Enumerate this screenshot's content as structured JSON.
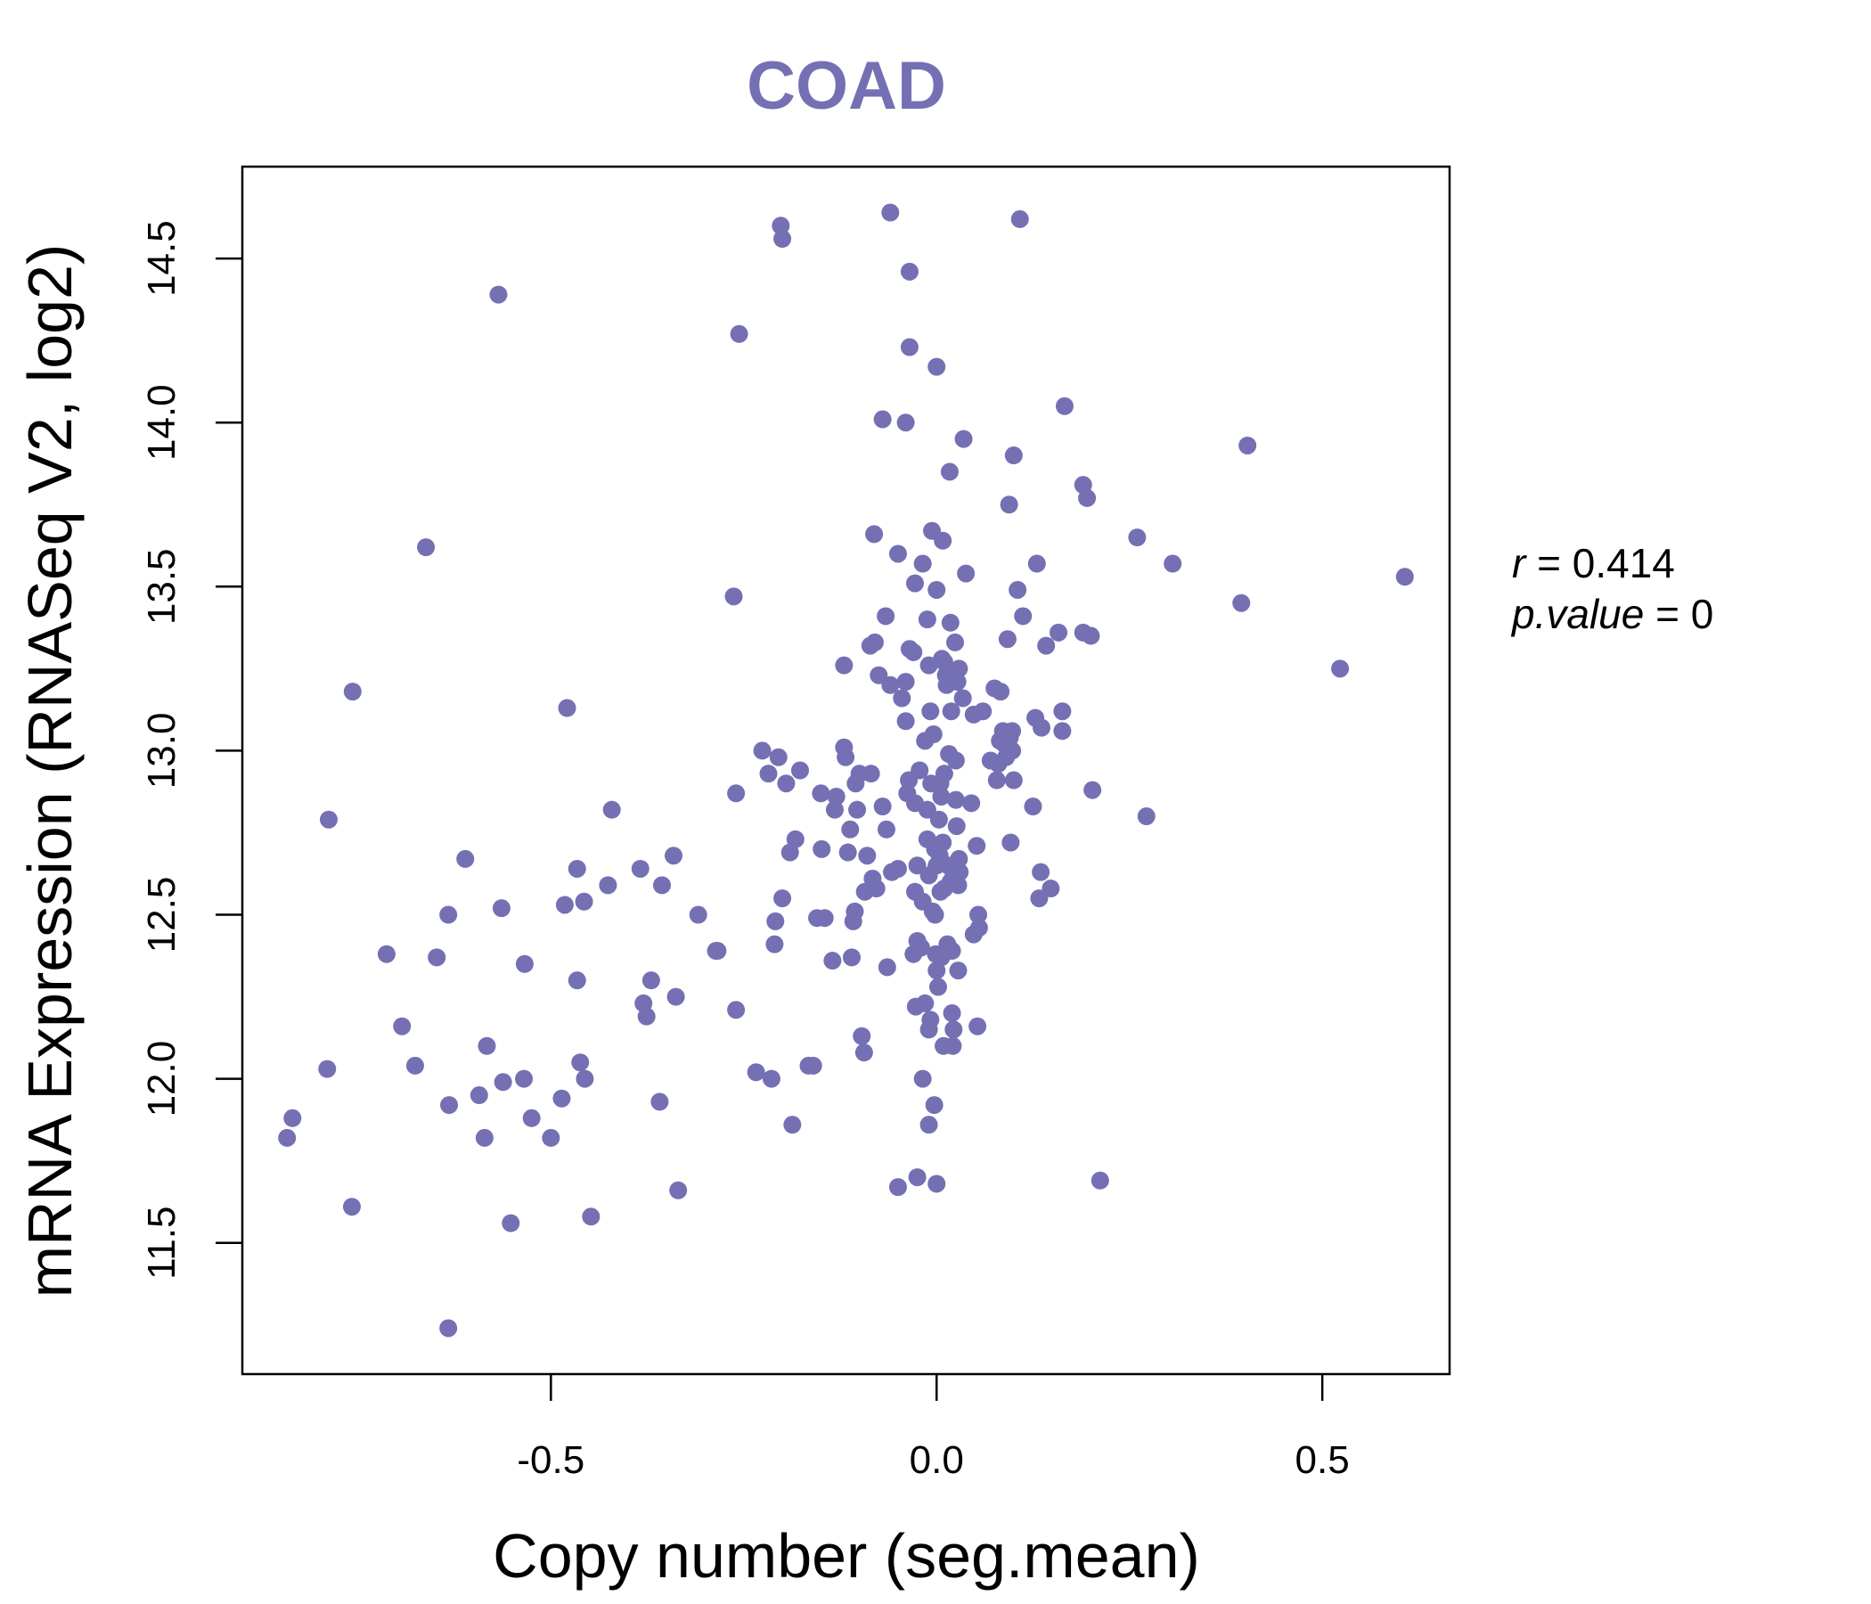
{
  "colors": {
    "point": "#7570b3",
    "title": "#7570b3",
    "axis": "#000000"
  },
  "chart_data": {
    "type": "scatter",
    "title": "COAD",
    "xlabel": "Copy number (seg.mean)",
    "ylabel": "mRNA Expression (RNASeq V2, log2)",
    "xlim": [
      -0.9,
      0.665
    ],
    "ylim": [
      11.1,
      14.78
    ],
    "x_ticks": [
      {
        "value": -0.5,
        "label": "-0.5"
      },
      {
        "value": 0.0,
        "label": "0.0"
      },
      {
        "value": 0.5,
        "label": "0.5"
      }
    ],
    "y_ticks": [
      {
        "value": 11.5,
        "label": "11.5"
      },
      {
        "value": 12.0,
        "label": "12.0"
      },
      {
        "value": 12.5,
        "label": "12.5"
      },
      {
        "value": 13.0,
        "label": "13.0"
      },
      {
        "value": 13.5,
        "label": "13.5"
      },
      {
        "value": 14.0,
        "label": "14.0"
      },
      {
        "value": 14.5,
        "label": "14.5"
      }
    ],
    "stats": {
      "r_label": "r",
      "r_value": "0.414",
      "p_label": "p.value",
      "p_value": "0"
    },
    "points": [
      [
        -0.842,
        11.82
      ],
      [
        -0.835,
        11.88
      ],
      [
        -0.79,
        12.03
      ],
      [
        -0.788,
        12.79
      ],
      [
        -0.758,
        11.61
      ],
      [
        -0.757,
        13.18
      ],
      [
        -0.713,
        12.38
      ],
      [
        -0.693,
        12.16
      ],
      [
        -0.676,
        12.04
      ],
      [
        -0.662,
        13.62
      ],
      [
        -0.648,
        12.37
      ],
      [
        -0.633,
        12.5
      ],
      [
        -0.632,
        11.92
      ],
      [
        -0.633,
        11.24
      ],
      [
        -0.611,
        12.67
      ],
      [
        -0.593,
        11.95
      ],
      [
        -0.586,
        11.82
      ],
      [
        -0.583,
        12.1
      ],
      [
        -0.568,
        14.39
      ],
      [
        -0.564,
        12.52
      ],
      [
        -0.562,
        11.99
      ],
      [
        -0.552,
        11.56
      ],
      [
        -0.535,
        12.0
      ],
      [
        -0.534,
        12.35
      ],
      [
        -0.525,
        11.88
      ],
      [
        -0.5,
        11.82
      ],
      [
        -0.486,
        11.94
      ],
      [
        -0.482,
        12.53
      ],
      [
        -0.479,
        13.13
      ],
      [
        -0.466,
        12.64
      ],
      [
        -0.466,
        12.3
      ],
      [
        -0.462,
        12.05
      ],
      [
        -0.457,
        12.54
      ],
      [
        -0.456,
        12.0
      ],
      [
        -0.448,
        11.58
      ],
      [
        -0.426,
        12.59
      ],
      [
        -0.421,
        12.82
      ],
      [
        -0.384,
        12.64
      ],
      [
        -0.38,
        12.23
      ],
      [
        -0.376,
        12.19
      ],
      [
        -0.37,
        12.3
      ],
      [
        -0.359,
        11.93
      ],
      [
        -0.356,
        12.59
      ],
      [
        -0.341,
        12.68
      ],
      [
        -0.338,
        12.25
      ],
      [
        -0.335,
        11.66
      ],
      [
        -0.309,
        12.5
      ],
      [
        -0.286,
        12.39
      ],
      [
        -0.284,
        12.39
      ],
      [
        -0.263,
        13.47
      ],
      [
        -0.26,
        12.21
      ],
      [
        -0.26,
        12.87
      ],
      [
        -0.256,
        14.27
      ],
      [
        -0.234,
        12.02
      ],
      [
        -0.226,
        13.0
      ],
      [
        -0.218,
        12.93
      ],
      [
        -0.214,
        12.0
      ],
      [
        -0.21,
        12.41
      ],
      [
        -0.209,
        12.48
      ],
      [
        -0.205,
        12.98
      ],
      [
        -0.202,
        14.6
      ],
      [
        -0.2,
        14.56
      ],
      [
        -0.2,
        12.55
      ],
      [
        -0.195,
        12.9
      ],
      [
        -0.19,
        12.69
      ],
      [
        -0.187,
        11.86
      ],
      [
        -0.183,
        12.73
      ],
      [
        -0.177,
        12.94
      ],
      [
        -0.166,
        12.04
      ],
      [
        -0.16,
        12.04
      ],
      [
        -0.155,
        12.49
      ],
      [
        -0.15,
        12.87
      ],
      [
        -0.149,
        12.7
      ],
      [
        -0.145,
        12.49
      ],
      [
        -0.135,
        12.36
      ],
      [
        -0.132,
        12.82
      ],
      [
        -0.13,
        12.86
      ],
      [
        -0.12,
        13.26
      ],
      [
        -0.12,
        13.01
      ],
      [
        -0.118,
        12.98
      ],
      [
        -0.115,
        12.69
      ],
      [
        -0.112,
        12.76
      ],
      [
        -0.11,
        12.37
      ],
      [
        -0.108,
        12.48
      ],
      [
        -0.106,
        12.51
      ],
      [
        -0.105,
        12.9
      ],
      [
        -0.103,
        12.82
      ],
      [
        -0.1,
        12.93
      ],
      [
        -0.097,
        12.13
      ],
      [
        -0.094,
        12.08
      ],
      [
        -0.093,
        12.57
      ],
      [
        -0.09,
        12.68
      ],
      [
        -0.086,
        13.32
      ],
      [
        -0.085,
        12.93
      ],
      [
        -0.083,
        12.61
      ],
      [
        -0.081,
        13.66
      ],
      [
        -0.08,
        13.33
      ],
      [
        -0.078,
        12.58
      ],
      [
        -0.075,
        13.23
      ],
      [
        -0.07,
        14.01
      ],
      [
        -0.07,
        12.83
      ],
      [
        -0.066,
        13.41
      ],
      [
        -0.065,
        12.76
      ],
      [
        -0.064,
        12.34
      ],
      [
        -0.06,
        14.64
      ],
      [
        -0.06,
        13.2
      ],
      [
        -0.058,
        12.63
      ],
      [
        -0.05,
        13.6
      ],
      [
        -0.05,
        11.67
      ],
      [
        -0.05,
        12.64
      ],
      [
        -0.045,
        13.16
      ],
      [
        -0.04,
        14.0
      ],
      [
        -0.04,
        13.21
      ],
      [
        -0.04,
        13.09
      ],
      [
        -0.038,
        12.87
      ],
      [
        -0.036,
        12.91
      ],
      [
        -0.035,
        13.31
      ],
      [
        -0.035,
        14.46
      ],
      [
        -0.035,
        14.23
      ],
      [
        -0.03,
        13.3
      ],
      [
        -0.03,
        12.38
      ],
      [
        -0.028,
        12.57
      ],
      [
        -0.028,
        12.84
      ],
      [
        -0.028,
        13.51
      ],
      [
        -0.027,
        12.22
      ],
      [
        -0.025,
        12.65
      ],
      [
        -0.025,
        12.42
      ],
      [
        -0.025,
        11.7
      ],
      [
        -0.022,
        12.94
      ],
      [
        -0.02,
        12.4
      ],
      [
        -0.018,
        12.54
      ],
      [
        -0.018,
        13.57
      ],
      [
        -0.018,
        12.0
      ],
      [
        -0.015,
        12.23
      ],
      [
        -0.015,
        13.03
      ],
      [
        -0.012,
        12.82
      ],
      [
        -0.012,
        12.73
      ],
      [
        -0.012,
        13.4
      ],
      [
        -0.01,
        11.86
      ],
      [
        -0.01,
        13.26
      ],
      [
        -0.01,
        12.15
      ],
      [
        -0.01,
        12.62
      ],
      [
        -0.008,
        12.18
      ],
      [
        -0.008,
        13.12
      ],
      [
        -0.007,
        12.9
      ],
      [
        -0.006,
        13.67
      ],
      [
        -0.005,
        12.51
      ],
      [
        -0.004,
        13.05
      ],
      [
        -0.003,
        11.92
      ],
      [
        -0.002,
        12.7
      ],
      [
        -0.002,
        12.5
      ],
      [
        -0.001,
        12.38
      ],
      [
        0.0,
        12.33
      ],
      [
        0.0,
        13.49
      ],
      [
        0.0,
        14.17
      ],
      [
        0.0,
        11.68
      ],
      [
        0.0,
        12.65
      ],
      [
        0.002,
        12.28
      ],
      [
        0.003,
        12.79
      ],
      [
        0.004,
        12.68
      ],
      [
        0.005,
        12.9
      ],
      [
        0.005,
        12.57
      ],
      [
        0.006,
        12.37
      ],
      [
        0.006,
        12.86
      ],
      [
        0.007,
        13.28
      ],
      [
        0.008,
        13.64
      ],
      [
        0.008,
        12.72
      ],
      [
        0.009,
        12.1
      ],
      [
        0.01,
        12.58
      ],
      [
        0.01,
        12.93
      ],
      [
        0.01,
        13.27
      ],
      [
        0.012,
        13.23
      ],
      [
        0.013,
        13.2
      ],
      [
        0.014,
        12.41
      ],
      [
        0.015,
        12.65
      ],
      [
        0.016,
        12.99
      ],
      [
        0.017,
        13.85
      ],
      [
        0.018,
        12.6
      ],
      [
        0.018,
        13.39
      ],
      [
        0.019,
        13.12
      ],
      [
        0.02,
        12.39
      ],
      [
        0.02,
        12.2
      ],
      [
        0.021,
        12.1
      ],
      [
        0.022,
        12.15
      ],
      [
        0.022,
        12.62
      ],
      [
        0.024,
        13.33
      ],
      [
        0.025,
        12.85
      ],
      [
        0.025,
        12.97
      ],
      [
        0.026,
        12.77
      ],
      [
        0.027,
        13.21
      ],
      [
        0.028,
        12.59
      ],
      [
        0.028,
        12.33
      ],
      [
        0.029,
        13.25
      ],
      [
        0.029,
        12.67
      ],
      [
        0.03,
        12.63
      ],
      [
        0.034,
        13.16
      ],
      [
        0.035,
        13.95
      ],
      [
        0.038,
        13.54
      ],
      [
        0.045,
        12.84
      ],
      [
        0.048,
        12.44
      ],
      [
        0.048,
        13.11
      ],
      [
        0.052,
        12.71
      ],
      [
        0.053,
        12.16
      ],
      [
        0.054,
        12.5
      ],
      [
        0.055,
        12.46
      ],
      [
        0.06,
        13.12
      ],
      [
        0.07,
        12.97
      ],
      [
        0.075,
        13.19
      ],
      [
        0.078,
        12.91
      ],
      [
        0.08,
        12.96
      ],
      [
        0.082,
        13.03
      ],
      [
        0.083,
        13.18
      ],
      [
        0.086,
        13.06
      ],
      [
        0.088,
        13.02
      ],
      [
        0.09,
        12.98
      ],
      [
        0.092,
        13.34
      ],
      [
        0.094,
        13.75
      ],
      [
        0.095,
        13.04
      ],
      [
        0.096,
        12.72
      ],
      [
        0.098,
        13.06
      ],
      [
        0.098,
        13.0
      ],
      [
        0.1,
        12.91
      ],
      [
        0.1,
        13.9
      ],
      [
        0.105,
        13.49
      ],
      [
        0.108,
        14.62
      ],
      [
        0.112,
        13.41
      ],
      [
        0.125,
        12.83
      ],
      [
        0.128,
        13.1
      ],
      [
        0.13,
        13.57
      ],
      [
        0.133,
        12.55
      ],
      [
        0.135,
        12.63
      ],
      [
        0.136,
        13.07
      ],
      [
        0.142,
        13.32
      ],
      [
        0.148,
        12.58
      ],
      [
        0.158,
        13.36
      ],
      [
        0.163,
        13.06
      ],
      [
        0.163,
        13.12
      ],
      [
        0.166,
        14.05
      ],
      [
        0.19,
        13.81
      ],
      [
        0.19,
        13.36
      ],
      [
        0.195,
        13.77
      ],
      [
        0.2,
        13.35
      ],
      [
        0.202,
        12.88
      ],
      [
        0.212,
        11.69
      ],
      [
        0.26,
        13.65
      ],
      [
        0.272,
        12.8
      ],
      [
        0.306,
        13.57
      ],
      [
        0.395,
        13.45
      ],
      [
        0.403,
        13.93
      ],
      [
        0.523,
        13.25
      ],
      [
        0.607,
        13.53
      ]
    ]
  }
}
